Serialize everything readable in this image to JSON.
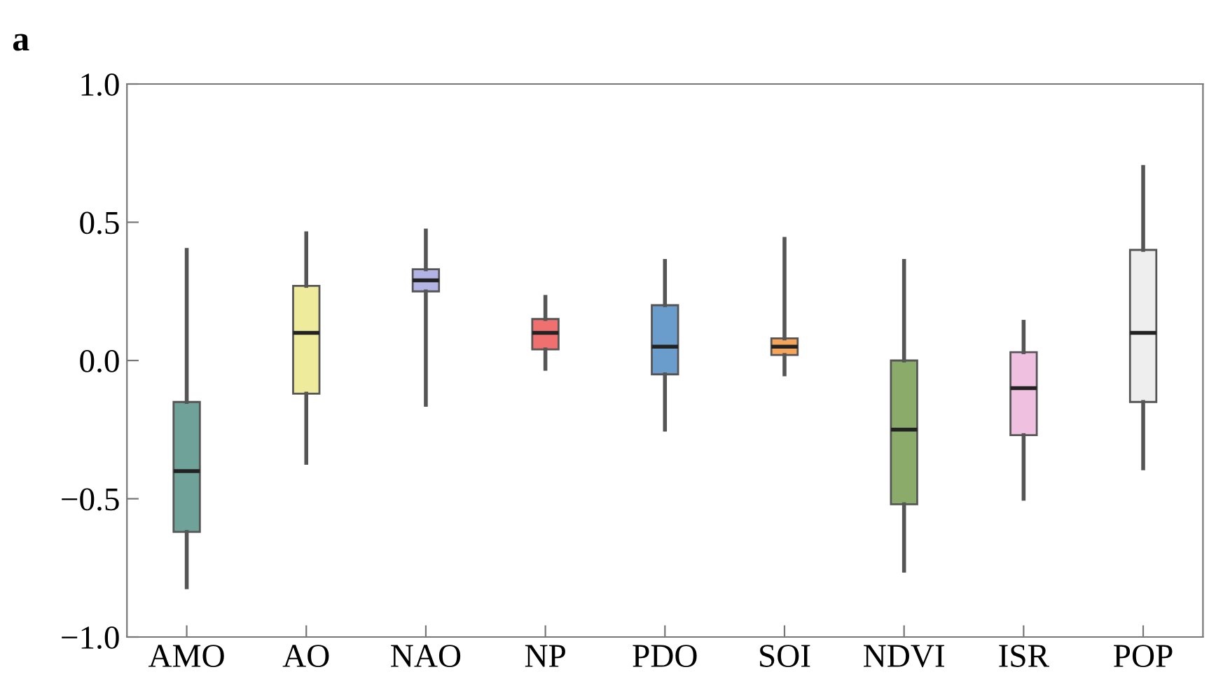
{
  "chart_data": {
    "type": "box",
    "title": "a",
    "categories": [
      "AMO",
      "AO",
      "NAO",
      "NP",
      "PDO",
      "SOI",
      "NDVI",
      "ISR",
      "POP"
    ],
    "colors": [
      "#6fa39a",
      "#eeec9c",
      "#b3b3e6",
      "#f07070",
      "#6a9ccc",
      "#f5a55a",
      "#8aab6a",
      "#f0c0e0",
      "#eeeeee"
    ],
    "boxes": [
      {
        "low": -0.82,
        "q1": -0.62,
        "median": -0.4,
        "q3": -0.15,
        "high": 0.4
      },
      {
        "low": -0.37,
        "q1": -0.12,
        "median": 0.1,
        "q3": 0.27,
        "high": 0.46
      },
      {
        "low": -0.16,
        "q1": 0.25,
        "median": 0.29,
        "q3": 0.33,
        "high": 0.47
      },
      {
        "low": -0.03,
        "q1": 0.04,
        "median": 0.1,
        "q3": 0.15,
        "high": 0.23
      },
      {
        "low": -0.25,
        "q1": -0.05,
        "median": 0.05,
        "q3": 0.2,
        "high": 0.36
      },
      {
        "low": -0.05,
        "q1": 0.02,
        "median": 0.05,
        "q3": 0.08,
        "high": 0.44
      },
      {
        "low": -0.76,
        "q1": -0.52,
        "median": -0.25,
        "q3": 0.0,
        "high": 0.36
      },
      {
        "low": -0.5,
        "q1": -0.27,
        "median": -0.1,
        "q3": 0.03,
        "high": 0.14
      },
      {
        "low": -0.39,
        "q1": -0.15,
        "median": 0.1,
        "q3": 0.4,
        "high": 0.7
      }
    ],
    "ylim": [
      -1.0,
      1.0
    ],
    "yticks": [
      {
        "value": -1.0,
        "label": "−1.0"
      },
      {
        "value": -0.5,
        "label": "−0.5"
      },
      {
        "value": 0.0,
        "label": "0.0"
      },
      {
        "value": 0.5,
        "label": "0.5"
      },
      {
        "value": 1.0,
        "label": "1.0"
      }
    ],
    "grid": false,
    "legend": false
  }
}
